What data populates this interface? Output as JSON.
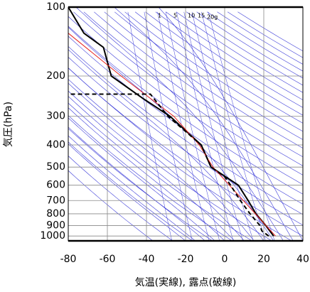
{
  "chart_data": {
    "type": "line",
    "xlabel": "気温(実線), 露点(破線)",
    "ylabel": "気圧(hPa)",
    "xlim": [
      -80,
      40
    ],
    "xticks": [
      -80,
      -60,
      -40,
      -20,
      0,
      20,
      40
    ],
    "ylim": [
      1050,
      100
    ],
    "ylog": true,
    "yticks": [
      100,
      200,
      300,
      400,
      500,
      600,
      700,
      800,
      900,
      1000
    ],
    "grid": true,
    "annotations": [
      "1",
      "5",
      "10",
      "15",
      "20g"
    ],
    "series": [
      {
        "color": "#000000",
        "dash": false,
        "width": 2,
        "y": [
          1000,
          900,
          800,
          700,
          600,
          500,
          400,
          300,
          250,
          200,
          150,
          130,
          100
        ],
        "x": [
          25,
          21,
          16,
          12,
          7,
          -7,
          -12,
          -28,
          -42,
          -58,
          -62,
          -72,
          -80
        ]
      },
      {
        "color": "#e8231e",
        "dash": false,
        "width": 1,
        "y": [
          1000,
          500,
          400,
          300,
          200,
          130
        ],
        "x": [
          26,
          -6,
          -13,
          -26,
          -53,
          -80
        ]
      },
      {
        "color": "#000000",
        "dash": true,
        "width": 2,
        "y": [
          1000,
          950,
          900,
          800,
          700,
          600,
          550,
          500,
          400,
          300,
          240,
          240
        ],
        "x": [
          22.5,
          19,
          18,
          13,
          8,
          3,
          0,
          -7,
          -12,
          -29,
          -38,
          -79
        ]
      }
    ]
  }
}
